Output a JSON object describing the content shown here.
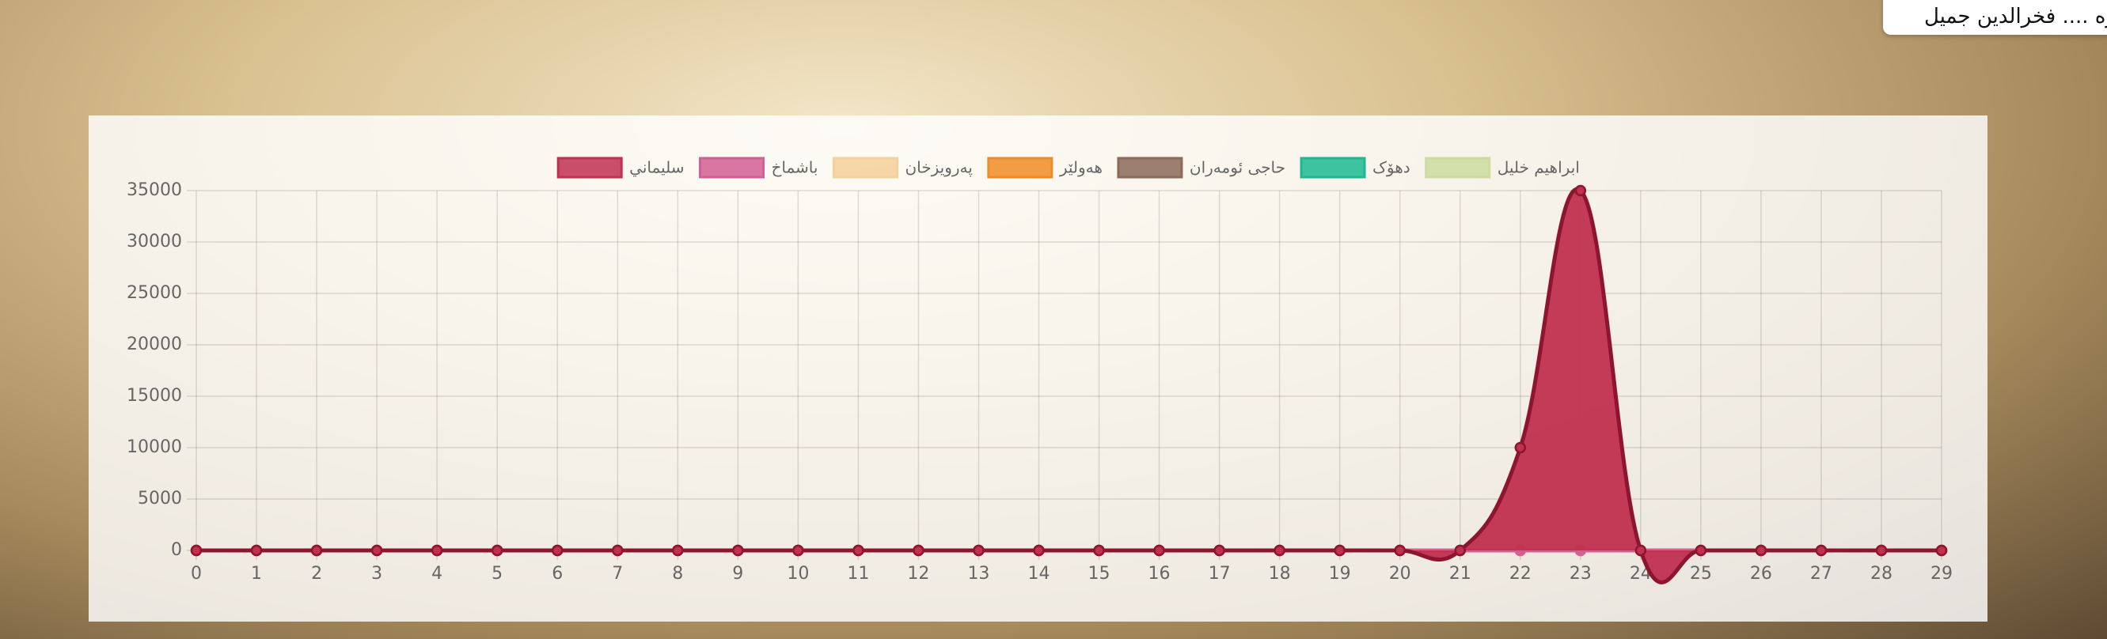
{
  "header": {
    "user": "وه .... فخرالدين جميل"
  },
  "chart_data": {
    "type": "line",
    "x": [
      0,
      1,
      2,
      3,
      4,
      5,
      6,
      7,
      8,
      9,
      10,
      11,
      12,
      13,
      14,
      15,
      16,
      17,
      18,
      19,
      20,
      21,
      22,
      23,
      24,
      25,
      26,
      27,
      28,
      29
    ],
    "xlim": [
      0,
      29
    ],
    "xticks": [
      0,
      1,
      2,
      3,
      4,
      5,
      6,
      7,
      8,
      9,
      10,
      11,
      12,
      13,
      14,
      15,
      16,
      17,
      18,
      19,
      20,
      21,
      22,
      23,
      24,
      25,
      26,
      27,
      28,
      29
    ],
    "ylim": [
      0,
      35000
    ],
    "yticks": [
      0,
      5000,
      10000,
      15000,
      20000,
      25000,
      30000,
      35000
    ],
    "grid": true,
    "legend": "top",
    "series": [
      {
        "name": "سليماني",
        "color": "#c0304f",
        "fill": true,
        "values": [
          0,
          0,
          0,
          0,
          0,
          0,
          0,
          0,
          0,
          0,
          0,
          0,
          0,
          0,
          0,
          0,
          0,
          0,
          0,
          0,
          0,
          0,
          10000,
          35000,
          0,
          0,
          0,
          0,
          0,
          0
        ]
      },
      {
        "name": "باشماخ",
        "color": "#d45f94",
        "values": [
          0,
          0,
          0,
          0,
          0,
          0,
          0,
          0,
          0,
          0,
          0,
          0,
          0,
          0,
          0,
          0,
          0,
          0,
          0,
          0,
          0,
          0,
          0,
          0,
          0,
          0,
          0,
          0,
          0,
          0
        ]
      },
      {
        "name": "پەرویزخان",
        "color": "#f5d09a",
        "values": [
          0,
          0,
          0,
          0,
          0,
          0,
          0,
          0,
          0,
          0,
          0,
          0,
          0,
          0,
          0,
          0,
          0,
          0,
          0,
          0,
          0,
          0,
          0,
          0,
          0,
          0,
          0,
          0,
          0,
          0
        ]
      },
      {
        "name": "هەولێر",
        "color": "#f08c28",
        "values": [
          0,
          0,
          0,
          0,
          0,
          0,
          0,
          0,
          0,
          0,
          0,
          0,
          0,
          0,
          0,
          0,
          0,
          0,
          0,
          0,
          0,
          0,
          0,
          0,
          0,
          0,
          0,
          0,
          0,
          0
        ]
      },
      {
        "name": "حاجی ئومەران",
        "color": "#8b6a58",
        "values": [
          0,
          0,
          0,
          0,
          0,
          0,
          0,
          0,
          0,
          0,
          0,
          0,
          0,
          0,
          0,
          0,
          0,
          0,
          0,
          0,
          0,
          0,
          0,
          0,
          0,
          0,
          0,
          0,
          0,
          0
        ]
      },
      {
        "name": "دهۆک",
        "color": "#1fb892",
        "values": [
          0,
          0,
          0,
          0,
          0,
          0,
          0,
          0,
          0,
          0,
          0,
          0,
          0,
          0,
          0,
          0,
          0,
          0,
          0,
          0,
          0,
          0,
          0,
          0,
          0,
          0,
          0,
          0,
          0,
          0
        ]
      },
      {
        "name": "ابراهيم خليل",
        "color": "#cddca0",
        "values": [
          0,
          0,
          0,
          0,
          0,
          0,
          0,
          0,
          0,
          0,
          0,
          0,
          0,
          0,
          0,
          0,
          0,
          0,
          0,
          0,
          0,
          0,
          0,
          0,
          0,
          0,
          0,
          0,
          0,
          0
        ]
      }
    ]
  }
}
